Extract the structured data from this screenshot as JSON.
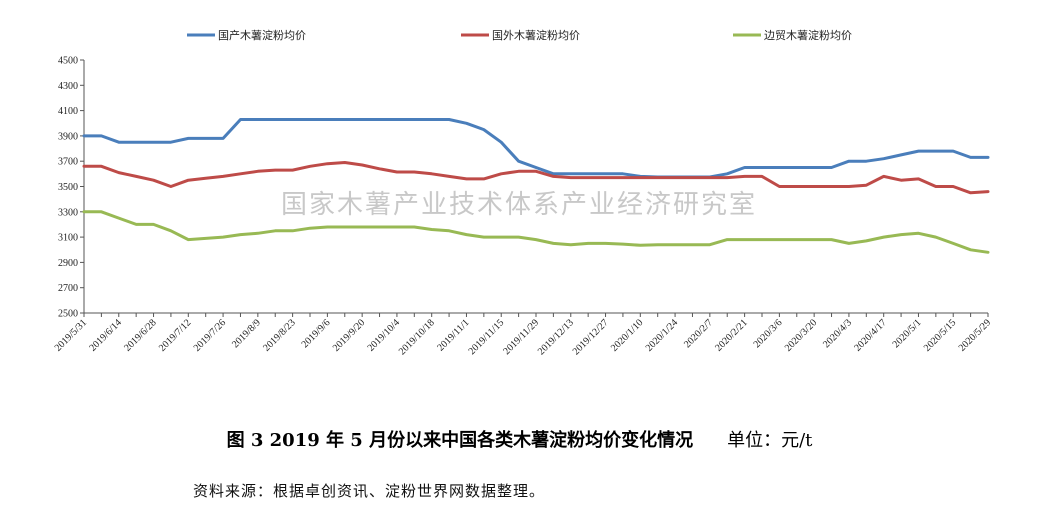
{
  "chart_data": {
    "type": "line",
    "watermark": "国家木薯产业技术体系产业经济研究室",
    "ylim": [
      2500,
      4500
    ],
    "yticks": [
      2500,
      2700,
      2900,
      3100,
      3300,
      3500,
      3700,
      3900,
      4100,
      4300,
      4500
    ],
    "grid": false,
    "legend_position": "top",
    "x": [
      "2019/5/31",
      "2019/6/7",
      "2019/6/14",
      "2019/6/21",
      "2019/6/28",
      "2019/7/5",
      "2019/7/12",
      "2019/7/19",
      "2019/7/26",
      "2019/8/2",
      "2019/8/9",
      "2019/8/16",
      "2019/8/23",
      "2019/8/30",
      "2019/9/6",
      "2019/9/13",
      "2019/9/20",
      "2019/9/27",
      "2019/10/4",
      "2019/10/11",
      "2019/10/18",
      "2019/10/25",
      "2019/11/1",
      "2019/11/8",
      "2019/11/15",
      "2019/11/22",
      "2019/11/29",
      "2019/12/6",
      "2019/12/13",
      "2019/12/20",
      "2019/12/27",
      "2020/1/3",
      "2020/1/10",
      "2020/1/17",
      "2020/1/24",
      "2020/1/31",
      "2020/2/7",
      "2020/2/14",
      "2020/2/21",
      "2020/2/28",
      "2020/3/6",
      "2020/3/13",
      "2020/3/20",
      "2020/3/27",
      "2020/4/3",
      "2020/4/10",
      "2020/4/17",
      "2020/4/24",
      "2020/5/1",
      "2020/5/8",
      "2020/5/15",
      "2020/5/22",
      "2020/5/29"
    ],
    "xtick_labels": [
      "2019/5/31",
      "2019/6/14",
      "2019/6/28",
      "2019/7/12",
      "2019/7/26",
      "2019/8/9",
      "2019/8/23",
      "2019/9/6",
      "2019/9/20",
      "2019/10/4",
      "2019/10/18",
      "2019/11/1",
      "2019/11/15",
      "2019/11/29",
      "2019/12/13",
      "2019/12/27",
      "2020/1/10",
      "2020/1/24",
      "2020/2/7",
      "2020/2/21",
      "2020/3/6",
      "2020/3/20",
      "2020/4/3",
      "2020/4/17",
      "2020/5/1",
      "2020/5/15",
      "2020/5/29"
    ],
    "series": [
      {
        "name": "国产木薯淀粉均价",
        "color": "#4a7ebb",
        "values": [
          3900,
          3900,
          3850,
          3850,
          3850,
          3850,
          3880,
          3880,
          3880,
          4030,
          4030,
          4030,
          4030,
          4030,
          4030,
          4030,
          4030,
          4030,
          4030,
          4030,
          4030,
          4030,
          4000,
          3950,
          3850,
          3700,
          3650,
          3600,
          3600,
          3600,
          3600,
          3600,
          3580,
          3575,
          3575,
          3575,
          3575,
          3600,
          3650,
          3650,
          3650,
          3650,
          3650,
          3650,
          3700,
          3700,
          3720,
          3750,
          3780,
          3780,
          3780,
          3730,
          3730
        ]
      },
      {
        "name": "国外木薯淀粉均价",
        "color": "#be4b48",
        "values": [
          3660,
          3660,
          3610,
          3580,
          3550,
          3500,
          3550,
          3565,
          3580,
          3600,
          3620,
          3630,
          3630,
          3660,
          3680,
          3690,
          3670,
          3640,
          3615,
          3615,
          3600,
          3580,
          3560,
          3560,
          3600,
          3620,
          3620,
          3580,
          3570,
          3570,
          3570,
          3570,
          3570,
          3570,
          3570,
          3570,
          3570,
          3570,
          3580,
          3580,
          3500,
          3500,
          3500,
          3500,
          3500,
          3510,
          3580,
          3550,
          3560,
          3500,
          3500,
          3450,
          3460
        ]
      },
      {
        "name": "边贸木薯淀粉均价",
        "color": "#98b954",
        "values": [
          3300,
          3300,
          3250,
          3200,
          3200,
          3150,
          3080,
          3090,
          3100,
          3120,
          3130,
          3150,
          3150,
          3170,
          3180,
          3180,
          3180,
          3180,
          3180,
          3180,
          3160,
          3150,
          3120,
          3100,
          3100,
          3100,
          3080,
          3050,
          3040,
          3050,
          3050,
          3045,
          3035,
          3040,
          3040,
          3040,
          3040,
          3080,
          3080,
          3080,
          3080,
          3080,
          3080,
          3080,
          3050,
          3070,
          3100,
          3120,
          3130,
          3100,
          3050,
          3000,
          2980
        ]
      }
    ]
  },
  "caption": {
    "title": "图 3   2019 年 5 月份以来中国各类木薯淀粉均价变化情况",
    "unit": "单位：元/t"
  },
  "source": "资料来源：根据卓创资讯、淀粉世界网数据整理。"
}
